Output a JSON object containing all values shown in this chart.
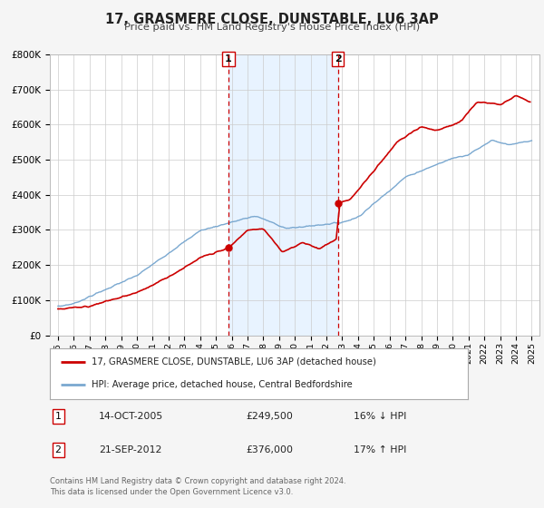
{
  "title": "17, GRASMERE CLOSE, DUNSTABLE, LU6 3AP",
  "subtitle": "Price paid vs. HM Land Registry's House Price Index (HPI)",
  "ylim": [
    0,
    800000
  ],
  "yticks": [
    0,
    100000,
    200000,
    300000,
    400000,
    500000,
    600000,
    700000,
    800000
  ],
  "ytick_labels": [
    "£0",
    "£100K",
    "£200K",
    "£300K",
    "£400K",
    "£500K",
    "£600K",
    "£700K",
    "£800K"
  ],
  "xlim_start": 1994.5,
  "xlim_end": 2025.5,
  "xticks": [
    1995,
    1996,
    1997,
    1998,
    1999,
    2000,
    2001,
    2002,
    2003,
    2004,
    2005,
    2006,
    2007,
    2008,
    2009,
    2010,
    2011,
    2012,
    2013,
    2014,
    2015,
    2016,
    2017,
    2018,
    2019,
    2020,
    2021,
    2022,
    2023,
    2024,
    2025
  ],
  "red_color": "#cc0000",
  "blue_color": "#7aa8d0",
  "sale1_x": 2005.79,
  "sale1_y": 249500,
  "sale2_x": 2012.72,
  "sale2_y": 376000,
  "legend_line1": "17, GRASMERE CLOSE, DUNSTABLE, LU6 3AP (detached house)",
  "legend_line2": "HPI: Average price, detached house, Central Bedfordshire",
  "sale1_date": "14-OCT-2005",
  "sale1_price": "£249,500",
  "sale1_hpi": "16% ↓ HPI",
  "sale2_date": "21-SEP-2012",
  "sale2_price": "£376,000",
  "sale2_hpi": "17% ↑ HPI",
  "footer1": "Contains HM Land Registry data © Crown copyright and database right 2024.",
  "footer2": "This data is licensed under the Open Government Licence v3.0.",
  "background_color": "#f5f5f5",
  "plot_bg_color": "#ffffff",
  "shade_color": "#ddeeff"
}
